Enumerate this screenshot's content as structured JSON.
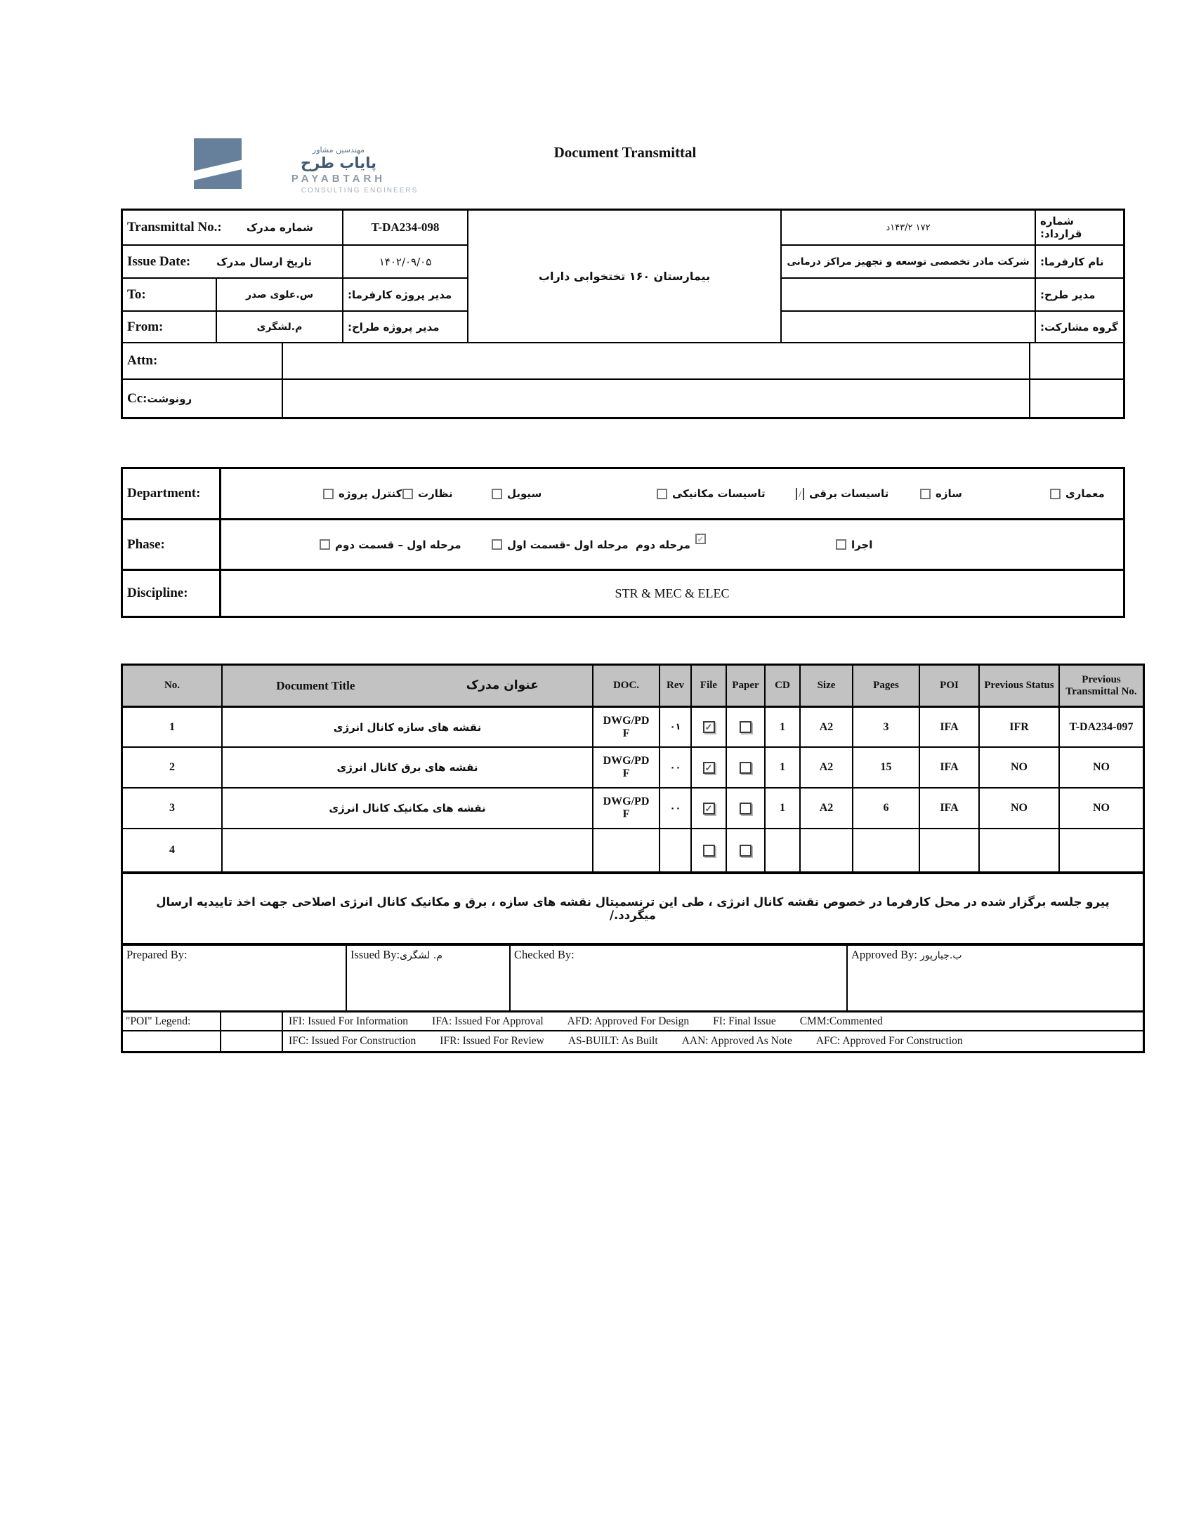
{
  "icons": {
    "check": "✓",
    "slash": "/"
  },
  "title": "Document Transmittal",
  "logo": {
    "brand_fa_small": "مهندسین مشاور",
    "brand_fa_big": "پایاب طرح",
    "brand_en": "PAYABTARH",
    "brand_en_sub": "CONSULTING ENGINEERS",
    "square_color": "#66809b"
  },
  "header": {
    "transmittal_label_en": "Transmittal No.:",
    "transmittal_label_fa": "شماره مدرک",
    "transmittal_value": "T-DA234-098",
    "issue_label_en": "Issue Date:",
    "issue_label_fa": "تاریخ ارسال مدرک",
    "issue_value": "۱۴۰۲/۰۹/۰۵",
    "to_label": "To:",
    "to_value": "س.علوی صدر",
    "client_pm_label": "مدیر پروژه کارفرما:",
    "from_label": "From:",
    "from_value": "م.لشگری",
    "design_pm_label": "مدیر پروژه طراح:",
    "project_title": "بیمارستان ۱۶۰ تختخوابی داراب",
    "contract_label": "شماره قرارداد:",
    "contract_value": "د۱۴۳/۲ ۱۷۲",
    "client_label": "نام کارفرما:",
    "client_value": "شرکت مادر تخصصی توسعه و تجهیز مراکز درمانی",
    "design_manager_label": "مدیر طرح:",
    "design_manager_value": "",
    "partnership_label": "گروه مشارکت:",
    "partnership_value": "",
    "attn_label": "Attn:",
    "attn_value": "",
    "cc_label_en": "Cc:",
    "cc_label_fa": "رونوشت",
    "cc_value": ""
  },
  "classification": {
    "department_label": "Department:",
    "departments": [
      {
        "label": "کنترل پروژه",
        "checked": false
      },
      {
        "label": "نظارت",
        "checked": false
      },
      {
        "label": "سیویل",
        "checked": false
      },
      {
        "label": "تاسیسات مکانیکی",
        "checked": false
      },
      {
        "label": "تاسیسات برقی",
        "checked": true,
        "slash": true
      },
      {
        "label": "سازه",
        "checked": false
      },
      {
        "label": "معماری",
        "checked": false
      }
    ],
    "phase_label": "Phase:",
    "phases": [
      {
        "label": "مرحله اول – قسمت دوم",
        "checked": false
      },
      {
        "label": "مرحله اول -قسمت اول",
        "checked": false
      },
      {
        "label": "مرحله دوم",
        "checked": true
      },
      {
        "label": "اجرا",
        "checked": false
      }
    ],
    "discipline_label": "Discipline:",
    "discipline_value": "STR & MEC & ELEC"
  },
  "doc_table": {
    "col_headers": {
      "no": "No.",
      "title_en": "Document Title",
      "title_fa": "عنوان مدرک",
      "doc": "DOC.",
      "rev": "Rev",
      "file": "File",
      "paper": "Paper",
      "cd": "CD",
      "size": "Size",
      "pages": "Pages",
      "poi": "POI",
      "prev_status": "Previous Status",
      "prev_transmittal": "Previous Transmittal No."
    },
    "rows": [
      {
        "no": "1",
        "title": "نقشه های سازه کانال انرژی",
        "doc": "DWG/PDF",
        "rev": "۰۱",
        "file": true,
        "paper": false,
        "cd": "1",
        "size": "A2",
        "pages": "3",
        "poi": "IFA",
        "prev_status": "IFR",
        "prev_transmittal": "T-DA234-097",
        "show_boxes": true
      },
      {
        "no": "2",
        "title": "نقشه های برق کانال انرژی",
        "doc": "DWG/PDF",
        "rev": "۰۰",
        "file": true,
        "paper": false,
        "cd": "1",
        "size": "A2",
        "pages": "15",
        "poi": "IFA",
        "prev_status": "NO",
        "prev_transmittal": "NO",
        "show_boxes": true
      },
      {
        "no": "3",
        "title": "نقشه های مکانیک کانال انرژی",
        "doc": "DWG/PDF",
        "rev": "۰۰",
        "file": true,
        "paper": false,
        "cd": "1",
        "size": "A2",
        "pages": "6",
        "poi": "IFA",
        "prev_status": "NO",
        "prev_transmittal": "NO",
        "show_boxes": true
      },
      {
        "no": "4",
        "title": "",
        "doc": "",
        "rev": "",
        "file": false,
        "paper": false,
        "cd": "",
        "size": "",
        "pages": "",
        "poi": "",
        "prev_status": "",
        "prev_transmittal": "",
        "show_boxes": true
      }
    ]
  },
  "note": "پیرو جلسه برگزار شده در محل کارفرما در خصوص نقشه کانال انرژی ، طی این ترنسمیتال نقشه های سازه ، برق و مکانیک کانال انرژی اصلاحی جهت اخذ تاییدیه ارسال میگردد./",
  "signoff": {
    "prepared_label": "Prepared By:",
    "prepared_value": "",
    "issued_label": "Issued By:",
    "issued_value": "م. لشگری",
    "checked_label": "Checked By:",
    "checked_value": "",
    "approved_label": "Approved By:",
    "approved_value": "ب.جبارپور"
  },
  "poi_legend": {
    "label": "\"POI\" Legend:",
    "row1": [
      "IFI:  Issued For Information",
      "IFA: Issued For Approval",
      "AFD: Approved For Design",
      "FI: Final Issue",
      "CMM:Commented"
    ],
    "row2": [
      "IFC: Issued For Construction",
      "IFR: Issued For Review",
      "AS-BUILT: As Built",
      "AAN: Approved As Note",
      "AFC: Approved For Construction"
    ]
  }
}
